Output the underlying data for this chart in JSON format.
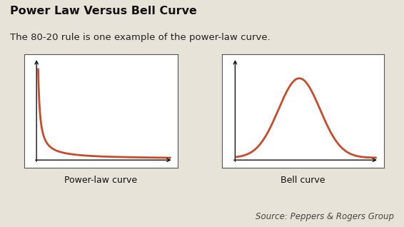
{
  "title": "Power Law Versus Bell Curve",
  "subtitle": "The 80-20 rule is one example of the power-law curve.",
  "left_label": "Power-law curve",
  "right_label": "Bell curve",
  "source": "Source: Peppers & Rogers Group",
  "curve_color": "#c84b2a",
  "bg_color": "#e8e3d8",
  "box_bg": "#ffffff",
  "box_edge_color": "#555555",
  "title_fontsize": 11.5,
  "subtitle_fontsize": 9.5,
  "label_fontsize": 9,
  "source_fontsize": 8.5
}
